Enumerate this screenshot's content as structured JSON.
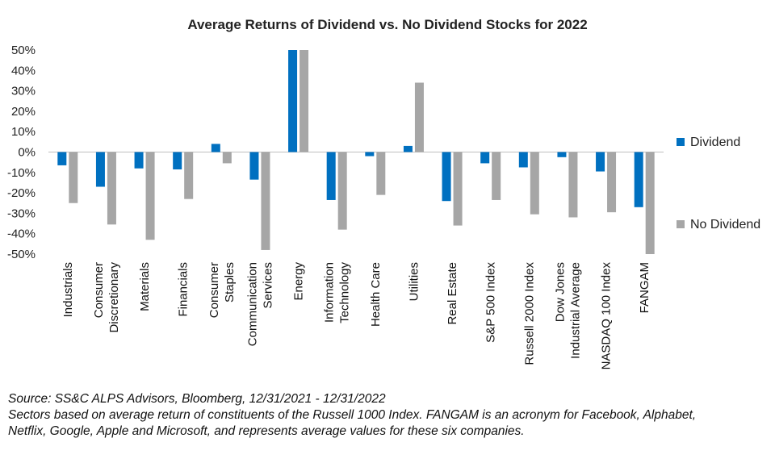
{
  "chart_data": {
    "type": "bar",
    "title": "Average Returns of Dividend vs. No Dividend Stocks for 2022",
    "categories": [
      [
        "Industrials"
      ],
      [
        "Consumer",
        "Discretionary"
      ],
      [
        "Materials"
      ],
      [
        "Financials"
      ],
      [
        "Consumer",
        "Staples"
      ],
      [
        "Communication",
        "Services"
      ],
      [
        "Energy"
      ],
      [
        "Information",
        "Technology"
      ],
      [
        "Health Care"
      ],
      [
        "Utilities"
      ],
      [
        "Real Estate"
      ],
      [
        "S&P 500 Index"
      ],
      [
        "Russell 2000 Index"
      ],
      [
        "Dow Jones",
        "Industrial Average"
      ],
      [
        "NASDAQ 100 Index"
      ],
      [
        "FANGAM"
      ]
    ],
    "series": [
      {
        "name": "Dividend",
        "color": "#0070C0",
        "values": [
          -6.5,
          -17,
          -8,
          -8.5,
          4,
          -13.5,
          51,
          -23.5,
          -2,
          3,
          -24,
          -5.5,
          -7.5,
          -2.5,
          -9.5,
          -27
        ]
      },
      {
        "name": "No Dividend",
        "color": "#A6A6A6",
        "values": [
          -25,
          -35.5,
          -43,
          -23,
          -5.5,
          -48,
          51,
          -38,
          -21,
          34,
          -36,
          -23.5,
          -30.5,
          -32,
          -29.5,
          -50
        ]
      }
    ],
    "yticks": [
      "50%",
      "40%",
      "30%",
      "20%",
      "10%",
      "0%",
      "-10%",
      "-20%",
      "-30%",
      "-40%",
      "-50%"
    ],
    "ylim": [
      -50,
      50
    ],
    "xlabel": "",
    "ylabel": "",
    "legend": "right"
  },
  "notes": {
    "source": "Source: SS&C ALPS Advisors, Bloomberg, 12/31/2021 - 12/31/2022",
    "line2": "Sectors based on average return of constituents of the Russell 1000 Index. FANGAM is an acronym for Facebook, Alphabet,",
    "line3": "Netflix, Google, Apple and Microsoft, and represents average values for these six companies."
  }
}
